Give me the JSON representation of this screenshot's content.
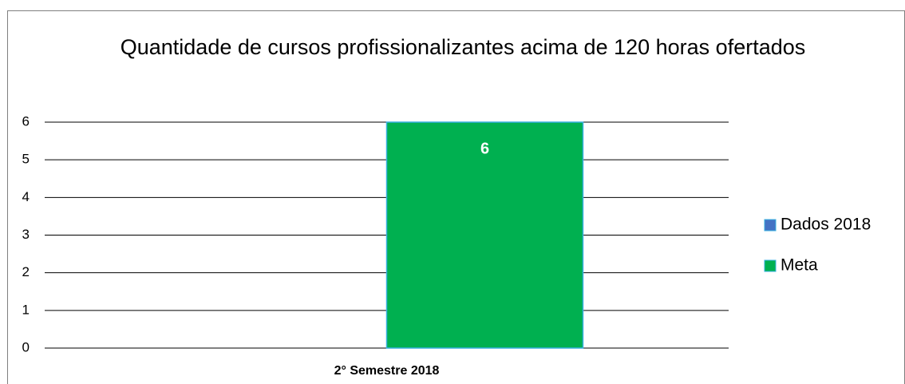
{
  "chart_data": {
    "type": "bar",
    "title": "Quantidade de cursos profissionalizantes acima de 120 horas ofertados",
    "categories": [
      "2° Semestre 2018"
    ],
    "series": [
      {
        "name": "Dados 2018",
        "color": "#4472c4",
        "values": [
          0
        ],
        "data_labels": false
      },
      {
        "name": "Meta",
        "color": "#00b050",
        "values": [
          6
        ],
        "data_labels": true
      }
    ],
    "ylim": [
      0,
      6
    ],
    "yticks": [
      0,
      1,
      2,
      3,
      4,
      5,
      6
    ],
    "grid": true,
    "legend": "right"
  }
}
